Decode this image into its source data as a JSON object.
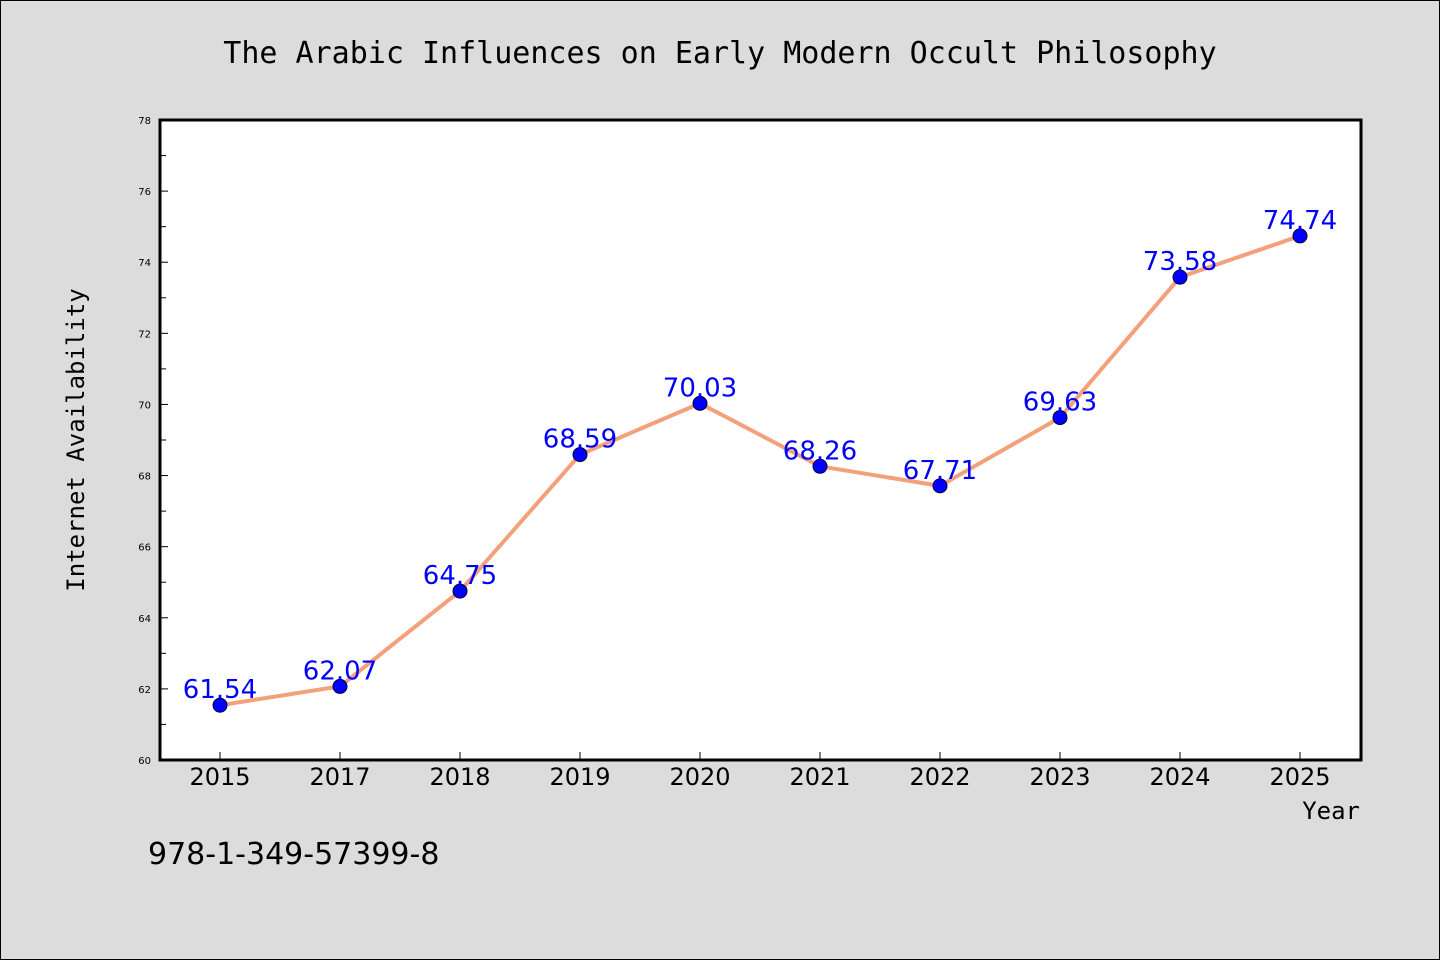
{
  "chart_data": {
    "type": "line",
    "title": "The Arabic Influences on Early Modern Occult Philosophy",
    "xlabel": "Year",
    "ylabel": "Internet Availability",
    "categories": [
      "2015",
      "2017",
      "2018",
      "2019",
      "2020",
      "2021",
      "2022",
      "2023",
      "2024",
      "2025"
    ],
    "values": [
      61.54,
      62.07,
      64.75,
      68.59,
      70.03,
      68.26,
      67.71,
      69.63,
      73.58,
      74.74
    ],
    "data_labels": [
      "61.54",
      "62.07",
      "64.75",
      "68.59",
      "70.03",
      "68.26",
      "67.71",
      "69.63",
      "73.58",
      "74.74"
    ],
    "ylim": [
      60,
      78
    ],
    "yticks": [
      "60",
      "62",
      "64",
      "66",
      "68",
      "70",
      "72",
      "74",
      "76",
      "78"
    ],
    "grid": false,
    "line_color": "#f4a07a",
    "marker_color": "#0000ff",
    "label_color": "#0000ff"
  },
  "footer": {
    "isbn": "978-1-349-57399-8"
  }
}
